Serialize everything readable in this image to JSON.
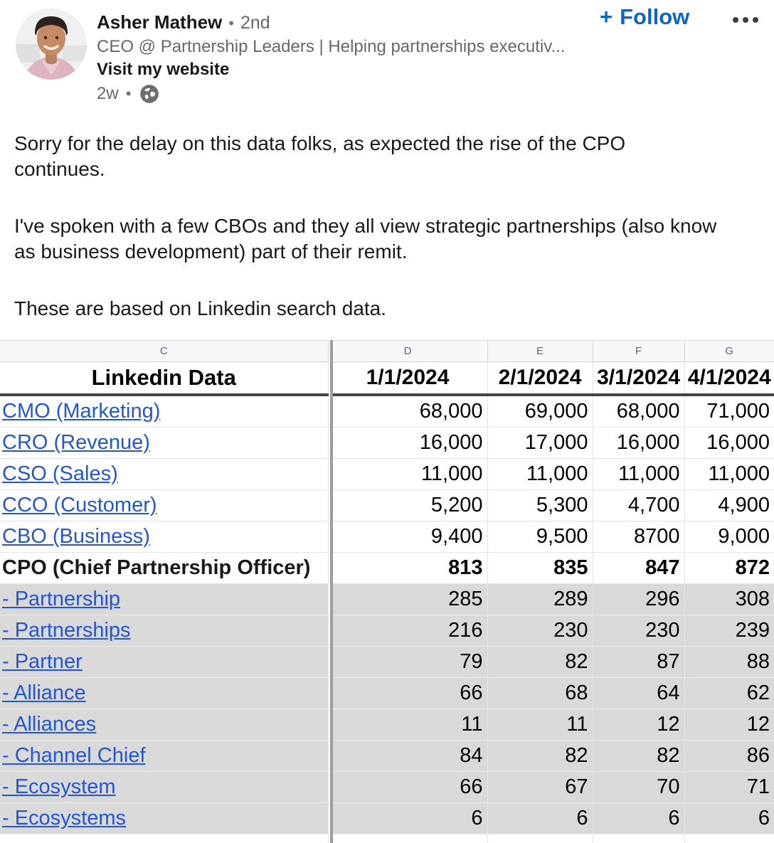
{
  "post": {
    "author": {
      "name": "Asher Mathew",
      "degree": "2nd",
      "headline": "CEO @ Partnership Leaders | Helping partnerships executiv...",
      "website_link": "Visit my website",
      "time": "2w",
      "dot_separator": "•"
    },
    "actions": {
      "follow_plus": "+",
      "follow_label": "Follow"
    },
    "paragraphs": [
      "Sorry for the delay on this data folks, as expected the rise of the CPO\ncontinues.",
      "I've spoken with a few CBOs and they all view strategic partnerships (also know\nas business development) part of their remit.",
      "These are based on Linkedin search data."
    ]
  },
  "spreadsheet": {
    "column_letters": [
      "C",
      "D",
      "E",
      "F",
      "G"
    ],
    "header": {
      "label": "Linkedin Data",
      "dates": [
        "1/1/2024",
        "2/1/2024",
        "3/1/2024",
        "4/1/2024"
      ]
    },
    "rows": [
      {
        "label": "CMO (Marketing)",
        "link": true,
        "bold": false,
        "shaded": false,
        "values": [
          "68,000",
          "69,000",
          "68,000",
          "71,000"
        ]
      },
      {
        "label": "CRO (Revenue)",
        "link": true,
        "bold": false,
        "shaded": false,
        "values": [
          "16,000",
          "17,000",
          "16,000",
          "16,000"
        ]
      },
      {
        "label": "CSO (Sales)",
        "link": true,
        "bold": false,
        "shaded": false,
        "values": [
          "11,000",
          "11,000",
          "11,000",
          "11,000"
        ]
      },
      {
        "label": "CCO (Customer)",
        "link": true,
        "bold": false,
        "shaded": false,
        "values": [
          "5,200",
          "5,300",
          "4,700",
          "4,900"
        ]
      },
      {
        "label": "CBO (Business)",
        "link": true,
        "bold": false,
        "shaded": false,
        "values": [
          "9,400",
          "9,500",
          "8700",
          "9,000"
        ]
      },
      {
        "label": "CPO (Chief Partnership Officer)",
        "link": false,
        "bold": true,
        "shaded": false,
        "values": [
          "813",
          "835",
          "847",
          "872"
        ]
      },
      {
        "label": "- Partnership",
        "link": true,
        "bold": false,
        "shaded": true,
        "values": [
          "285",
          "289",
          "296",
          "308"
        ]
      },
      {
        "label": "- Partnerships",
        "link": true,
        "bold": false,
        "shaded": true,
        "values": [
          "216",
          "230",
          "230",
          "239"
        ]
      },
      {
        "label": "- Partner",
        "link": true,
        "bold": false,
        "shaded": true,
        "values": [
          "79",
          "82",
          "87",
          "88"
        ]
      },
      {
        "label": "- Alliance",
        "link": true,
        "bold": false,
        "shaded": true,
        "values": [
          "66",
          "68",
          "64",
          "62"
        ]
      },
      {
        "label": "- Alliances",
        "link": true,
        "bold": false,
        "shaded": true,
        "values": [
          "11",
          "11",
          "12",
          "12"
        ]
      },
      {
        "label": "- Channel Chief",
        "link": true,
        "bold": false,
        "shaded": true,
        "values": [
          "84",
          "82",
          "82",
          "86"
        ]
      },
      {
        "label": "- Ecosystem",
        "link": true,
        "bold": false,
        "shaded": true,
        "values": [
          "66",
          "67",
          "70",
          "71"
        ]
      },
      {
        "label": "- Ecosystems",
        "link": true,
        "bold": false,
        "shaded": true,
        "values": [
          "6",
          "6",
          "6",
          "6"
        ]
      }
    ]
  },
  "colors": {
    "linkedin_blue": "#0a66c2",
    "link_blue": "#2355d4",
    "gray_row": "#d9d9d9",
    "text_primary": "#1a1a1a",
    "text_secondary": "#666666"
  }
}
